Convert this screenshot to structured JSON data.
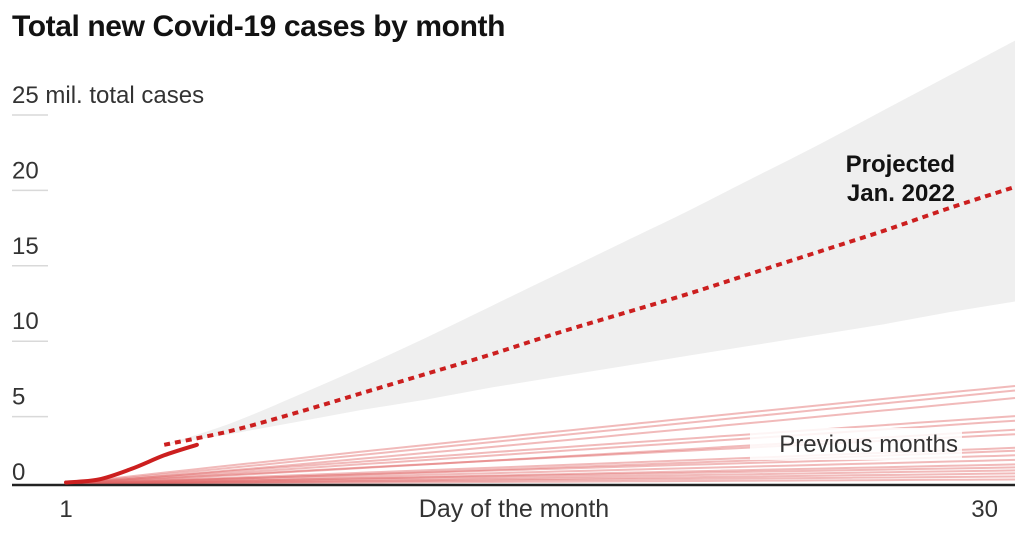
{
  "title": "Total new Covid-19 cases by month",
  "chart_data": {
    "type": "line",
    "title": "Total new Covid-19 cases by month",
    "xlabel": "Day of the month",
    "ylabel": "",
    "x_ticks": [
      "1",
      "30"
    ],
    "xlim": [
      1,
      30
    ],
    "ylim": [
      0,
      25
    ],
    "y_ticks": [
      {
        "value": 0,
        "label": "0"
      },
      {
        "value": 5,
        "label": "5"
      },
      {
        "value": 10,
        "label": "10"
      },
      {
        "value": 15,
        "label": "15"
      },
      {
        "value": 20,
        "label": "20"
      },
      {
        "value": 25,
        "label": "25 mil. total cases"
      }
    ],
    "grid": true,
    "colors": {
      "current": "#cc1f1f",
      "previous": "#e06666",
      "band": "#efefef",
      "axis": "#222222"
    },
    "current_month": {
      "x": [
        1,
        2,
        3,
        4,
        5
      ],
      "y": [
        0.1,
        0.3,
        1.0,
        1.9,
        2.6
      ]
    },
    "projection": {
      "label_line1": "Projected",
      "label_line2": "Jan. 2022",
      "x": [
        4,
        6,
        8,
        10,
        12,
        14,
        16,
        18,
        20,
        22,
        24,
        26,
        28,
        30
      ],
      "y": [
        2.6,
        3.5,
        4.7,
        6.0,
        7.3,
        8.6,
        10.0,
        11.3,
        12.6,
        14.0,
        15.4,
        16.8,
        18.3,
        19.7
      ],
      "band_low": [
        2.6,
        3.3,
        4.1,
        4.9,
        5.6,
        6.4,
        7.1,
        7.8,
        8.5,
        9.2,
        9.9,
        10.6,
        11.4,
        12.1
      ],
      "band_high": [
        2.6,
        4.0,
        5.8,
        7.7,
        9.7,
        11.8,
        13.9,
        16.0,
        18.1,
        20.3,
        22.5,
        24.8,
        27.1,
        29.4
      ]
    },
    "previous_months": {
      "label": "Previous months",
      "x_end": 30,
      "series_end_values": [
        6.5,
        6.2,
        5.7,
        4.5,
        4.2,
        3.6,
        3.3,
        2.4,
        2.2,
        1.9,
        1.6,
        1.3,
        1.1,
        0.9,
        0.7,
        0.5,
        0.3
      ]
    }
  }
}
